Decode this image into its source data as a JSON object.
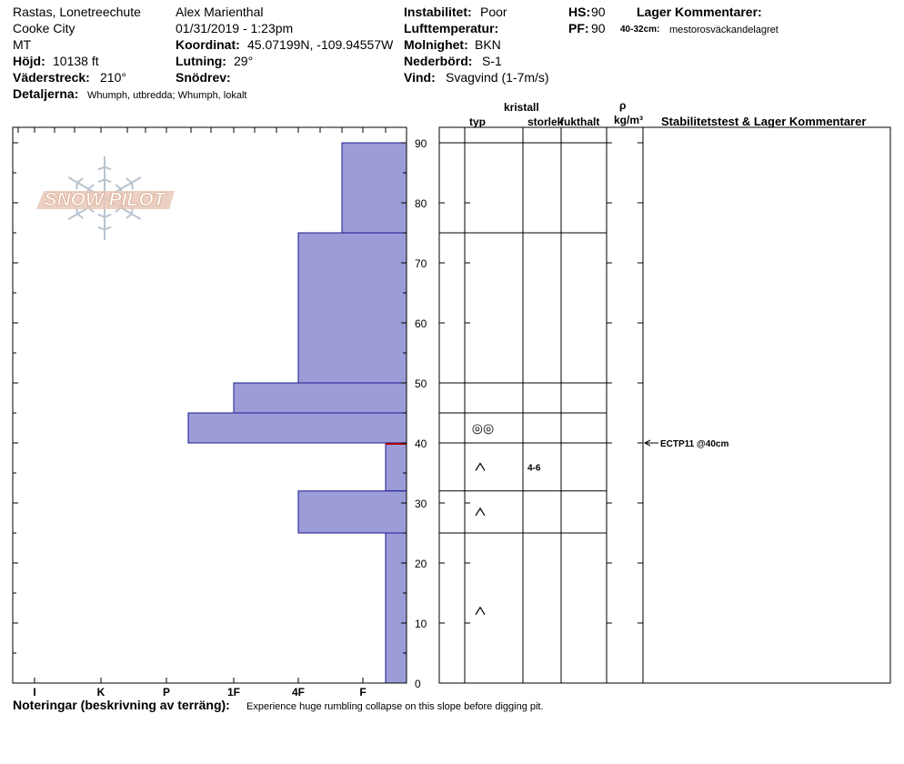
{
  "header": {
    "location": "Rastas, Lonetreechute",
    "range": "Cooke City",
    "state": "MT",
    "elevation_label": "Höjd:",
    "elevation": "10138 ft",
    "aspect_label": "Väderstreck:",
    "aspect": "210°",
    "details_label": "Detaljerna:",
    "details": "Whumph, utbredda; Whumph, lokalt",
    "observer": "Alex Marienthal",
    "datetime": "01/31/2019 - 1:23pm",
    "coord_label": "Koordinat:",
    "coord": "45.07199N, -109.94557W",
    "slope_label": "Lutning:",
    "slope": "29°",
    "snowdrift_label": "Snödrev:",
    "snowdrift": "",
    "instability_label": "Instabilitet:",
    "instability": "Poor",
    "airtemp_label": "Lufttemperatur:",
    "airtemp": "",
    "sky_label": "Molnighet:",
    "sky": "BKN",
    "precip_label": "Nederbörd:",
    "precip": "S-1",
    "wind_label": "Vind:",
    "wind": "Svagvind (1-7m/s)",
    "hs_label": "HS:",
    "hs": "90",
    "pf_label": "PF:",
    "pf": "90",
    "layer_comments_label": "Lager Kommentarer:",
    "layer_comment_depth": "40-32cm:",
    "layer_comment_text": "mestorosväckandelagret"
  },
  "table_headers": {
    "crystal": "kristall",
    "type": "typ",
    "size": "storlek",
    "moisture": "fukthalt",
    "rho": "ρ",
    "density_unit": "kg/m³",
    "stability": "Stabilitetstest & Lager Kommentarer"
  },
  "logo_text": "SNOW PILOT",
  "notes_label": "Noteringar (beskrivning av terräng):",
  "notes": "Experience huge rumbling collapse on this slope before digging pit.",
  "colors": {
    "bar_fill": "#9c9cd9",
    "bar_stroke": "#1a1a8c",
    "weak_layer": "#b00000",
    "logo": "#e8c8b8"
  },
  "chart_data": {
    "type": "bar",
    "orientation": "horizontal",
    "y_axis": {
      "range": [
        0,
        90
      ],
      "ticks": [
        0,
        10,
        20,
        30,
        40,
        50,
        60,
        70,
        80,
        90
      ],
      "unit": "cm"
    },
    "x_axis": {
      "categories": [
        "I",
        "K",
        "P",
        "1F",
        "4F",
        "F"
      ],
      "note": "hardness scale, F at right"
    },
    "layers": [
      {
        "top": 90,
        "bottom": 75,
        "hardness": "4F-"
      },
      {
        "top": 75,
        "bottom": 50,
        "hardness": "4F"
      },
      {
        "top": 50,
        "bottom": 45,
        "hardness": "1F"
      },
      {
        "top": 45,
        "bottom": 40,
        "hardness": "1F+"
      },
      {
        "top": 40,
        "bottom": 32,
        "hardness": "F"
      },
      {
        "top": 32,
        "bottom": 25,
        "hardness": "4F"
      },
      {
        "top": 25,
        "bottom": 0,
        "hardness": "F"
      }
    ],
    "weak_layer_depth": 40,
    "layer_details": [
      {
        "top": 45,
        "bottom": 40,
        "type_symbol": "◎◎",
        "size": ""
      },
      {
        "top": 40,
        "bottom": 32,
        "type_symbol": "^",
        "size": "4-6"
      },
      {
        "top": 32,
        "bottom": 25,
        "type_symbol": "^",
        "size": ""
      },
      {
        "top": 25,
        "bottom": 0,
        "type_symbol": "^",
        "size": ""
      }
    ],
    "test_results": [
      {
        "depth": 40,
        "label": "ECTP11 @40cm"
      }
    ]
  }
}
